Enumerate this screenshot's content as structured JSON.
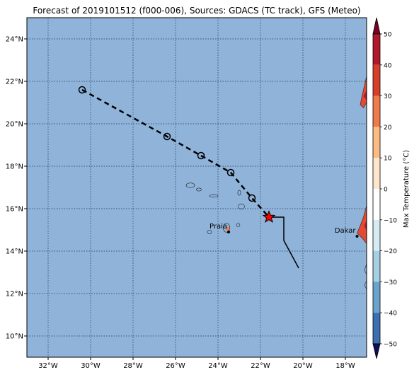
{
  "title": "Forecast of 2019101512 (f000-006), Sources: GDACS (TC track), GFS (Meteo)",
  "map": {
    "lon_range": [
      -33,
      -17
    ],
    "lat_range": [
      9,
      25
    ],
    "x_tick_labels": [
      "32°W",
      "30°W",
      "28°W",
      "26°W",
      "24°W",
      "22°W",
      "20°W",
      "18°W"
    ],
    "x_tick_values": [
      -32,
      -30,
      -28,
      -26,
      -24,
      -22,
      -20,
      -18
    ],
    "y_tick_labels": [
      "24°N",
      "22°N",
      "20°N",
      "18°N",
      "16°N",
      "14°N",
      "12°N",
      "10°N"
    ],
    "y_tick_values": [
      24,
      22,
      20,
      18,
      16,
      14,
      12,
      10
    ],
    "gridlines": true,
    "ocean_color": "#8fb3d9",
    "colors": {
      "track_past": "#000000",
      "track_forecast": "#000000",
      "current_position_marker": "#ff0000"
    }
  },
  "track": {
    "forecast_points": [
      {
        "lon": -30.4,
        "lat": 21.6
      },
      {
        "lon": -26.4,
        "lat": 19.4
      },
      {
        "lon": -24.8,
        "lat": 18.5
      },
      {
        "lon": -23.4,
        "lat": 17.7
      },
      {
        "lon": -22.4,
        "lat": 16.5
      },
      {
        "lon": -21.6,
        "lat": 15.6
      }
    ],
    "past_path": [
      {
        "lon": -21.6,
        "lat": 15.6
      },
      {
        "lon": -20.9,
        "lat": 15.6
      },
      {
        "lon": -20.9,
        "lat": 14.5
      },
      {
        "lon": -20.2,
        "lat": 13.2
      }
    ],
    "current": {
      "lon": -21.6,
      "lat": 15.6
    }
  },
  "cities": [
    {
      "name": "Praia",
      "lon": -23.5,
      "lat": 14.9
    },
    {
      "name": "Dakar",
      "lon": -17.45,
      "lat": 14.7
    }
  ],
  "colorbar": {
    "label": "Max Temperature (°C)",
    "tick_labels": [
      "50",
      "40",
      "30",
      "20",
      "10",
      "0",
      "−10",
      "−20",
      "−30",
      "−40",
      "−50"
    ],
    "colors": [
      "#7b0024",
      "#b2182b",
      "#d6402b",
      "#ef7b4b",
      "#fdbb84",
      "#fee6cc",
      "#ffffff",
      "#d6ecf4",
      "#a5cfe3",
      "#6aa3cc",
      "#3b6fb0",
      "#28358f",
      "#0b0f56"
    ]
  }
}
